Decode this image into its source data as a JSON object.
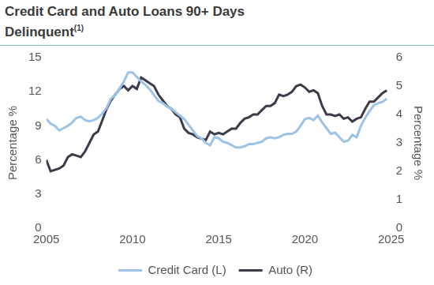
{
  "chart_data": {
    "type": "line",
    "title": "Credit Card and Auto Loans 90+ Days Delinquent",
    "title_superscript": "(1)",
    "y_label": "Percentage %",
    "y2_label": "Percentage %",
    "xlim": [
      2005,
      2025
    ],
    "xticks": [
      2005,
      2010,
      2015,
      2020,
      2025
    ],
    "ylim": [
      0,
      15
    ],
    "yticks": [
      0,
      3,
      6,
      9,
      12,
      15
    ],
    "y2lim": [
      0,
      6
    ],
    "y2ticks": [
      0,
      1,
      2,
      3,
      4,
      5,
      6
    ],
    "grid": false,
    "legend": "bottom",
    "x": [
      2005,
      2005.25,
      2005.5,
      2005.75,
      2006,
      2006.25,
      2006.5,
      2006.75,
      2007,
      2007.25,
      2007.5,
      2007.75,
      2008,
      2008.25,
      2008.5,
      2008.75,
      2009,
      2009.25,
      2009.5,
      2009.75,
      2010,
      2010.25,
      2010.5,
      2010.75,
      2011,
      2011.25,
      2011.5,
      2011.75,
      2012,
      2012.25,
      2012.5,
      2012.75,
      2013,
      2013.25,
      2013.5,
      2013.75,
      2014,
      2014.25,
      2014.5,
      2014.75,
      2015,
      2015.25,
      2015.5,
      2015.75,
      2016,
      2016.25,
      2016.5,
      2016.75,
      2017,
      2017.25,
      2017.5,
      2017.75,
      2018,
      2018.25,
      2018.5,
      2018.75,
      2019,
      2019.25,
      2019.5,
      2019.75,
      2020,
      2020.25,
      2020.5,
      2020.75,
      2021,
      2021.25,
      2021.5,
      2021.75,
      2022,
      2022.25,
      2022.5,
      2022.75,
      2023,
      2023.25,
      2023.5,
      2023.75,
      2024,
      2024.25,
      2024.5,
      2024.75
    ],
    "series": [
      {
        "name": "Credit Card (L)",
        "color": "#9dc3e6",
        "axis": "y",
        "values": [
          9.6,
          9.2,
          9.0,
          8.6,
          8.8,
          9.0,
          9.3,
          9.7,
          9.8,
          9.5,
          9.4,
          9.5,
          9.7,
          10.1,
          10.6,
          11.4,
          11.7,
          12.3,
          12.9,
          13.7,
          13.7,
          13.3,
          12.9,
          12.6,
          12.2,
          11.7,
          11.2,
          11.0,
          10.7,
          10.5,
          10.2,
          9.9,
          9.6,
          9.1,
          8.6,
          8.1,
          7.9,
          7.5,
          7.3,
          8.0,
          7.9,
          7.6,
          7.5,
          7.3,
          7.1,
          7.1,
          7.2,
          7.4,
          7.4,
          7.5,
          7.6,
          7.9,
          8.0,
          7.9,
          8.0,
          8.2,
          8.3,
          8.3,
          8.5,
          9.0,
          9.6,
          9.7,
          9.5,
          9.9,
          9.3,
          8.8,
          8.3,
          8.4,
          8.0,
          7.6,
          7.7,
          8.2,
          8.0,
          9.0,
          9.7,
          10.3,
          10.8,
          11.0,
          11.1,
          11.4
        ]
      },
      {
        "name": "Auto (R)",
        "color": "#3b3b4b",
        "axis": "y2",
        "values": [
          2.4,
          2.0,
          2.05,
          2.1,
          2.2,
          2.5,
          2.6,
          2.55,
          2.5,
          2.7,
          3.0,
          3.3,
          3.4,
          3.8,
          4.2,
          4.5,
          4.7,
          4.9,
          5.0,
          4.85,
          5.0,
          4.9,
          5.3,
          5.2,
          5.1,
          5.0,
          4.7,
          4.5,
          4.3,
          4.2,
          4.0,
          3.9,
          3.5,
          3.35,
          3.3,
          3.2,
          3.15,
          3.1,
          3.4,
          3.3,
          3.35,
          3.3,
          3.4,
          3.5,
          3.5,
          3.7,
          3.85,
          3.9,
          4.0,
          4.0,
          4.15,
          4.3,
          4.3,
          4.4,
          4.7,
          4.65,
          4.7,
          4.8,
          5.0,
          5.05,
          4.95,
          4.8,
          4.85,
          4.75,
          4.3,
          4.0,
          4.0,
          3.95,
          4.0,
          3.85,
          3.9,
          3.75,
          3.85,
          3.9,
          4.2,
          4.45,
          4.45,
          4.6,
          4.75,
          4.85
        ]
      }
    ]
  }
}
